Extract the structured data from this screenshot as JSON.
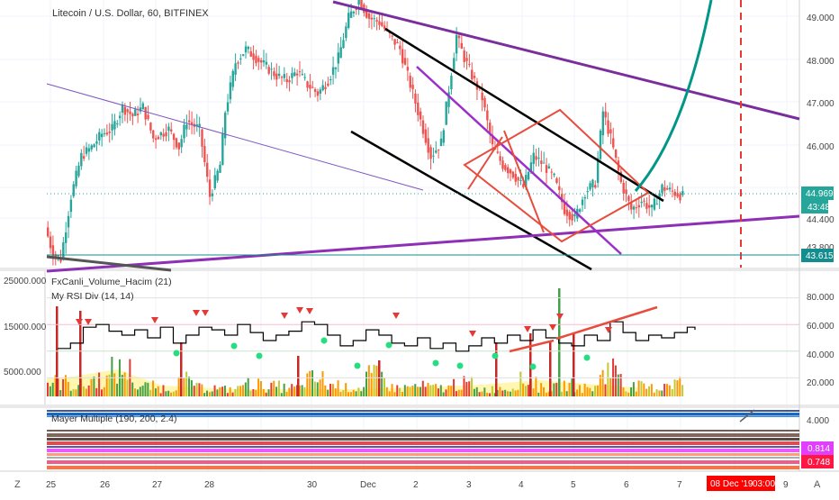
{
  "header": {
    "symbol_title": "Litecoin / U.S. Dollar, 60, BITFINEX"
  },
  "price_axis": {
    "ticks": [
      "49.000",
      "48.000",
      "47.000",
      "46.000",
      "44.400",
      "43.800"
    ],
    "last_price": "44.969",
    "countdown": "43:48",
    "support_level": "43.615"
  },
  "volume_panel": {
    "indicator_label": "FxCanli_Volume_Hacim (21)",
    "left_ticks": [
      "25000.000",
      "15000.000",
      "5000.000"
    ]
  },
  "rsi_panel": {
    "indicator_label": "My RSI Div (14, 14)",
    "right_ticks": [
      "80.000",
      "60.000",
      "40.000",
      "20.000"
    ]
  },
  "mayer_panel": {
    "indicator_label": "Mayer Multiple (190, 200, 2.4)",
    "right_ticks": [
      "4.000"
    ],
    "value_badge_1": "0.814",
    "value_badge_2": "0.748"
  },
  "time_axis": {
    "labels": [
      "25",
      "26",
      "27",
      "28",
      "30",
      "Dec",
      "2",
      "3",
      "4",
      "5",
      "6",
      "7",
      "8",
      "9"
    ],
    "cursor_label": "08 Dec '19",
    "cursor_time": "03:00",
    "left_button": "Z",
    "right_button": "A"
  },
  "colors": {
    "up_candle": "#26a69a",
    "down_candle": "#ef5350",
    "channel": "#000000",
    "diamond": "#e74c3c",
    "trend_purple": "#7b2d9e",
    "curve_teal": "#009688",
    "last_price_badge": "#26a69a",
    "support_badge": "#138d8d",
    "cursor_badge": "#ff0000"
  },
  "chart_data": {
    "type": "candlestick",
    "title": "Litecoin / U.S. Dollar, 60, BITFINEX",
    "ylim": [
      43.3,
      49.3
    ],
    "x_ticks": [
      "25",
      "26",
      "27",
      "28",
      "30",
      "Dec",
      "2",
      "3",
      "4",
      "5",
      "6",
      "7",
      "8",
      "9"
    ],
    "price_path": [
      [
        0,
        44.2
      ],
      [
        3,
        43.6
      ],
      [
        6,
        43.5
      ],
      [
        10,
        44.9
      ],
      [
        14,
        45.8
      ],
      [
        18,
        46.0
      ],
      [
        22,
        46.3
      ],
      [
        26,
        46.4
      ],
      [
        30,
        46.9
      ],
      [
        34,
        46.7
      ],
      [
        38,
        46.9
      ],
      [
        42,
        46.2
      ],
      [
        48,
        46.4
      ],
      [
        52,
        46.0
      ],
      [
        55,
        46.6
      ],
      [
        60,
        46.4
      ],
      [
        64,
        44.9
      ],
      [
        68,
        45.6
      ],
      [
        70,
        46.8
      ],
      [
        74,
        47.9
      ],
      [
        78,
        48.2
      ],
      [
        82,
        48.0
      ],
      [
        86,
        47.8
      ],
      [
        90,
        47.6
      ],
      [
        94,
        47.5
      ],
      [
        98,
        47.7
      ],
      [
        102,
        47.4
      ],
      [
        106,
        47.2
      ],
      [
        110,
        47.5
      ],
      [
        114,
        48.0
      ],
      [
        118,
        48.9
      ],
      [
        122,
        49.3
      ],
      [
        126,
        48.9
      ],
      [
        130,
        48.8
      ],
      [
        134,
        48.5
      ],
      [
        138,
        48.2
      ],
      [
        142,
        47.4
      ],
      [
        146,
        46.6
      ],
      [
        150,
        45.8
      ],
      [
        154,
        46.1
      ],
      [
        157,
        47.3
      ],
      [
        160,
        48.5
      ],
      [
        163,
        48.0
      ],
      [
        166,
        47.6
      ],
      [
        170,
        47.1
      ],
      [
        174,
        46.0
      ],
      [
        178,
        45.6
      ],
      [
        182,
        45.4
      ],
      [
        186,
        45.1
      ],
      [
        190,
        45.8
      ],
      [
        194,
        45.6
      ],
      [
        198,
        45.3
      ],
      [
        202,
        44.6
      ],
      [
        206,
        44.4
      ],
      [
        210,
        45.0
      ],
      [
        214,
        45.2
      ],
      [
        217,
        46.8
      ],
      [
        220,
        46.2
      ],
      [
        224,
        45.2
      ],
      [
        228,
        44.6
      ],
      [
        232,
        44.8
      ],
      [
        236,
        44.6
      ],
      [
        240,
        45.1
      ],
      [
        244,
        45.0
      ],
      [
        248,
        44.9
      ]
    ],
    "volume_pct": [
      0.5,
      0.4,
      0.6,
      0.9,
      0.35,
      0.3,
      0.55,
      0.3,
      0.25,
      0.45,
      0.35,
      0.3,
      0.6,
      0.4,
      0.3,
      0.7,
      0.3,
      0.35,
      0.3,
      0.45,
      0.25,
      0.3,
      0.55,
      0.3,
      0.4,
      0.3,
      0.95,
      0.35,
      0.3,
      0.5
    ],
    "rsi_path": [
      [
        0,
        42
      ],
      [
        5,
        46
      ],
      [
        10,
        58
      ],
      [
        15,
        60
      ],
      [
        20,
        55
      ],
      [
        25,
        52
      ],
      [
        30,
        56
      ],
      [
        35,
        50
      ],
      [
        40,
        58
      ],
      [
        45,
        46
      ],
      [
        50,
        52
      ],
      [
        55,
        58
      ],
      [
        60,
        56
      ],
      [
        65,
        52
      ],
      [
        70,
        60
      ],
      [
        75,
        54
      ],
      [
        80,
        48
      ],
      [
        85,
        52
      ],
      [
        90,
        55
      ],
      [
        95,
        62
      ],
      [
        100,
        60
      ],
      [
        105,
        52
      ],
      [
        110,
        44
      ],
      [
        115,
        48
      ],
      [
        120,
        56
      ],
      [
        125,
        52
      ],
      [
        130,
        46
      ],
      [
        135,
        44
      ],
      [
        140,
        50
      ],
      [
        145,
        42
      ],
      [
        150,
        46
      ],
      [
        155,
        40
      ],
      [
        160,
        44
      ],
      [
        165,
        50
      ],
      [
        170,
        46
      ],
      [
        175,
        52
      ],
      [
        180,
        48
      ],
      [
        185,
        56
      ],
      [
        190,
        50
      ],
      [
        195,
        46
      ],
      [
        200,
        44
      ],
      [
        205,
        52
      ],
      [
        210,
        48
      ],
      [
        215,
        62
      ],
      [
        220,
        54
      ],
      [
        225,
        48
      ],
      [
        230,
        52
      ],
      [
        235,
        50
      ],
      [
        240,
        54
      ],
      [
        245,
        58
      ],
      [
        248,
        56
      ]
    ],
    "rsi_ylim": [
      0,
      100
    ]
  }
}
